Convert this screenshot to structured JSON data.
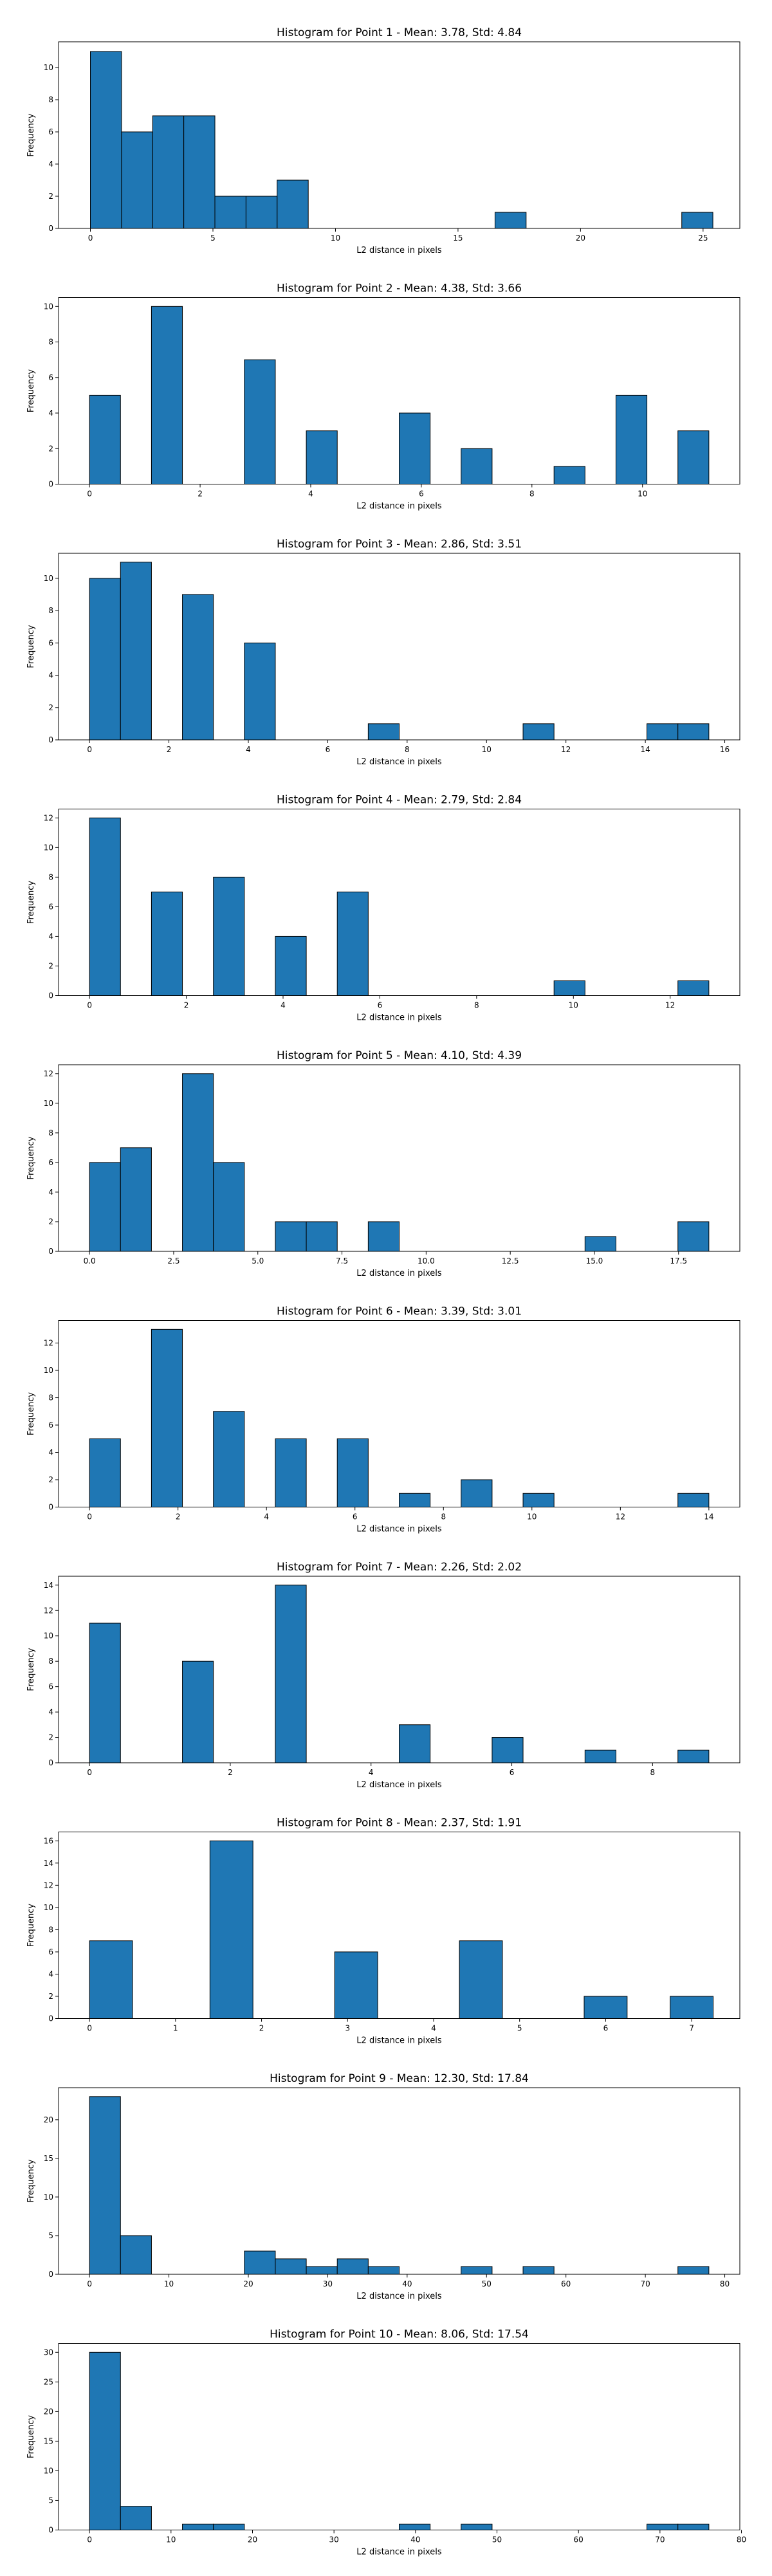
{
  "figure": {
    "bar_color": "#1f77b4",
    "edge_color": "#000000"
  },
  "chart_data": [
    {
      "type": "bar",
      "title": "Histogram for Point 1 - Mean: 3.78, Std: 4.84",
      "xlabel": "L2 distance in pixels",
      "ylabel": "Frequency",
      "xlim": [
        -1.3,
        26.5
      ],
      "ylim": [
        0,
        11.6
      ],
      "xticks": [
        0,
        5,
        10,
        15,
        20,
        25
      ],
      "xtick_labels": [
        "0",
        "5",
        "10",
        "15",
        "20",
        "25"
      ],
      "yticks": [
        0,
        2,
        4,
        6,
        8,
        10
      ],
      "ytick_labels": [
        "0",
        "2",
        "4",
        "6",
        "8",
        "10"
      ],
      "bins": [
        {
          "x0": 0,
          "x1": 1.27,
          "count": 11
        },
        {
          "x0": 1.27,
          "x1": 2.54,
          "count": 6
        },
        {
          "x0": 2.54,
          "x1": 3.81,
          "count": 7
        },
        {
          "x0": 3.81,
          "x1": 5.08,
          "count": 7
        },
        {
          "x0": 5.08,
          "x1": 6.35,
          "count": 2
        },
        {
          "x0": 6.35,
          "x1": 7.62,
          "count": 2
        },
        {
          "x0": 7.62,
          "x1": 8.89,
          "count": 3
        },
        {
          "x0": 16.51,
          "x1": 17.78,
          "count": 1
        },
        {
          "x0": 24.13,
          "x1": 25.4,
          "count": 1
        }
      ],
      "grid": false
    },
    {
      "type": "bar",
      "title": "Histogram for Point 2 - Mean: 4.38, Std: 3.66",
      "xlabel": "L2 distance in pixels",
      "ylabel": "Frequency",
      "xlim": [
        -0.56,
        11.76
      ],
      "ylim": [
        0,
        10.5
      ],
      "xticks": [
        0,
        2,
        4,
        6,
        8,
        10
      ],
      "xtick_labels": [
        "0",
        "2",
        "4",
        "6",
        "8",
        "10"
      ],
      "yticks": [
        0,
        2,
        4,
        6,
        8,
        10
      ],
      "ytick_labels": [
        "0",
        "2",
        "4",
        "6",
        "8",
        "10"
      ],
      "bins": [
        {
          "x0": 0,
          "x1": 0.56,
          "count": 5
        },
        {
          "x0": 1.12,
          "x1": 1.68,
          "count": 10
        },
        {
          "x0": 2.8,
          "x1": 3.36,
          "count": 7
        },
        {
          "x0": 3.92,
          "x1": 4.48,
          "count": 3
        },
        {
          "x0": 5.6,
          "x1": 6.16,
          "count": 4
        },
        {
          "x0": 6.72,
          "x1": 7.28,
          "count": 2
        },
        {
          "x0": 8.4,
          "x1": 8.96,
          "count": 1
        },
        {
          "x0": 9.52,
          "x1": 10.08,
          "count": 5
        },
        {
          "x0": 10.64,
          "x1": 11.2,
          "count": 3
        }
      ],
      "grid": false
    },
    {
      "type": "bar",
      "title": "Histogram for Point 3 - Mean: 2.86, Std: 3.51",
      "xlabel": "L2 distance in pixels",
      "ylabel": "Frequency",
      "xlim": [
        -0.78,
        16.38
      ],
      "ylim": [
        0,
        11.55
      ],
      "xticks": [
        0,
        2,
        4,
        6,
        8,
        10,
        12,
        14,
        16
      ],
      "xtick_labels": [
        "0",
        "2",
        "4",
        "6",
        "8",
        "10",
        "12",
        "14",
        "16"
      ],
      "yticks": [
        0,
        2,
        4,
        6,
        8,
        10
      ],
      "ytick_labels": [
        "0",
        "2",
        "4",
        "6",
        "8",
        "10"
      ],
      "bins": [
        {
          "x0": 0,
          "x1": 0.78,
          "count": 10
        },
        {
          "x0": 0.78,
          "x1": 1.56,
          "count": 11
        },
        {
          "x0": 2.34,
          "x1": 3.12,
          "count": 9
        },
        {
          "x0": 3.9,
          "x1": 4.68,
          "count": 6
        },
        {
          "x0": 7.02,
          "x1": 7.8,
          "count": 1
        },
        {
          "x0": 10.92,
          "x1": 11.7,
          "count": 1
        },
        {
          "x0": 14.04,
          "x1": 14.82,
          "count": 1
        },
        {
          "x0": 14.82,
          "x1": 15.6,
          "count": 1
        }
      ],
      "grid": false
    },
    {
      "type": "bar",
      "title": "Histogram for Point 4 - Mean: 2.79, Std: 2.84",
      "xlabel": "L2 distance in pixels",
      "ylabel": "Frequency",
      "xlim": [
        -0.64,
        13.44
      ],
      "ylim": [
        0,
        12.6
      ],
      "xticks": [
        0,
        2,
        4,
        6,
        8,
        10,
        12
      ],
      "xtick_labels": [
        "0",
        "2",
        "4",
        "6",
        "8",
        "10",
        "12"
      ],
      "yticks": [
        0,
        2,
        4,
        6,
        8,
        10,
        12
      ],
      "ytick_labels": [
        "0",
        "2",
        "4",
        "6",
        "8",
        "10",
        "12"
      ],
      "bins": [
        {
          "x0": 0,
          "x1": 0.64,
          "count": 12
        },
        {
          "x0": 1.28,
          "x1": 1.92,
          "count": 7
        },
        {
          "x0": 2.56,
          "x1": 3.2,
          "count": 8
        },
        {
          "x0": 3.84,
          "x1": 4.48,
          "count": 4
        },
        {
          "x0": 5.12,
          "x1": 5.76,
          "count": 7
        },
        {
          "x0": 9.6,
          "x1": 10.24,
          "count": 1
        },
        {
          "x0": 12.16,
          "x1": 12.8,
          "count": 1
        }
      ],
      "grid": false
    },
    {
      "type": "bar",
      "title": "Histogram for Point 5 - Mean: 4.10, Std: 4.39",
      "xlabel": "L2 distance in pixels",
      "ylabel": "Frequency",
      "xlim": [
        -0.92,
        19.32
      ],
      "ylim": [
        0,
        12.6
      ],
      "xticks": [
        0,
        2.5,
        5,
        7.5,
        10,
        12.5,
        15,
        17.5
      ],
      "xtick_labels": [
        "0.0",
        "2.5",
        "5.0",
        "7.5",
        "10.0",
        "12.5",
        "15.0",
        "17.5"
      ],
      "yticks": [
        0,
        2,
        4,
        6,
        8,
        10,
        12
      ],
      "ytick_labels": [
        "0",
        "2",
        "4",
        "6",
        "8",
        "10",
        "12"
      ],
      "bins": [
        {
          "x0": 0,
          "x1": 0.92,
          "count": 6
        },
        {
          "x0": 0.92,
          "x1": 1.84,
          "count": 7
        },
        {
          "x0": 2.76,
          "x1": 3.68,
          "count": 12
        },
        {
          "x0": 3.68,
          "x1": 4.6,
          "count": 6
        },
        {
          "x0": 5.52,
          "x1": 6.44,
          "count": 2
        },
        {
          "x0": 6.44,
          "x1": 7.36,
          "count": 2
        },
        {
          "x0": 8.28,
          "x1": 9.2,
          "count": 2
        },
        {
          "x0": 14.72,
          "x1": 15.64,
          "count": 1
        },
        {
          "x0": 17.48,
          "x1": 18.4,
          "count": 2
        }
      ],
      "grid": false
    },
    {
      "type": "bar",
      "title": "Histogram for Point 6 - Mean: 3.39, Std: 3.01",
      "xlabel": "L2 distance in pixels",
      "ylabel": "Frequency",
      "xlim": [
        -0.7,
        14.7
      ],
      "ylim": [
        0,
        13.65
      ],
      "xticks": [
        0,
        2,
        4,
        6,
        8,
        10,
        12,
        14
      ],
      "xtick_labels": [
        "0",
        "2",
        "4",
        "6",
        "8",
        "10",
        "12",
        "14"
      ],
      "yticks": [
        0,
        2,
        4,
        6,
        8,
        10,
        12
      ],
      "ytick_labels": [
        "0",
        "2",
        "4",
        "6",
        "8",
        "10",
        "12"
      ],
      "bins": [
        {
          "x0": 0,
          "x1": 0.7,
          "count": 5
        },
        {
          "x0": 1.4,
          "x1": 2.1,
          "count": 13
        },
        {
          "x0": 2.8,
          "x1": 3.5,
          "count": 7
        },
        {
          "x0": 4.2,
          "x1": 4.9,
          "count": 5
        },
        {
          "x0": 5.6,
          "x1": 6.3,
          "count": 5
        },
        {
          "x0": 7.0,
          "x1": 7.7,
          "count": 1
        },
        {
          "x0": 8.4,
          "x1": 9.1,
          "count": 2
        },
        {
          "x0": 9.8,
          "x1": 10.5,
          "count": 1
        },
        {
          "x0": 13.3,
          "x1": 14.0,
          "count": 1
        }
      ],
      "grid": false
    },
    {
      "type": "bar",
      "title": "Histogram for Point 7 - Mean: 2.26, Std: 2.02",
      "xlabel": "L2 distance in pixels",
      "ylabel": "Frequency",
      "xlim": [
        -0.44,
        9.24
      ],
      "ylim": [
        0,
        14.7
      ],
      "xticks": [
        0,
        2,
        4,
        6,
        8
      ],
      "xtick_labels": [
        "0",
        "2",
        "4",
        "6",
        "8"
      ],
      "yticks": [
        0,
        2,
        4,
        6,
        8,
        10,
        12,
        14
      ],
      "ytick_labels": [
        "0",
        "2",
        "4",
        "6",
        "8",
        "10",
        "12",
        "14"
      ],
      "bins": [
        {
          "x0": 0,
          "x1": 0.44,
          "count": 11
        },
        {
          "x0": 1.32,
          "x1": 1.76,
          "count": 8
        },
        {
          "x0": 2.64,
          "x1": 3.08,
          "count": 14
        },
        {
          "x0": 4.4,
          "x1": 4.84,
          "count": 3
        },
        {
          "x0": 5.72,
          "x1": 6.16,
          "count": 2
        },
        {
          "x0": 7.04,
          "x1": 7.48,
          "count": 1
        },
        {
          "x0": 8.36,
          "x1": 8.8,
          "count": 1
        }
      ],
      "grid": false
    },
    {
      "type": "bar",
      "title": "Histogram for Point 8 - Mean: 2.37, Std: 1.91",
      "xlabel": "L2 distance in pixels",
      "ylabel": "Frequency",
      "xlim": [
        -0.36,
        7.56
      ],
      "ylim": [
        0,
        16.8
      ],
      "xticks": [
        0,
        1,
        2,
        3,
        4,
        5,
        6,
        7
      ],
      "xtick_labels": [
        "0",
        "1",
        "2",
        "3",
        "4",
        "5",
        "6",
        "7"
      ],
      "yticks": [
        0,
        2,
        4,
        6,
        8,
        10,
        12,
        14,
        16
      ],
      "ytick_labels": [
        "0",
        "2",
        "4",
        "6",
        "8",
        "10",
        "12",
        "14",
        "16"
      ],
      "bins": [
        {
          "x0": 0,
          "x1": 0.5,
          "count": 7
        },
        {
          "x0": 1.4,
          "x1": 1.9,
          "count": 16
        },
        {
          "x0": 2.85,
          "x1": 3.35,
          "count": 6
        },
        {
          "x0": 4.3,
          "x1": 4.8,
          "count": 7
        },
        {
          "x0": 5.75,
          "x1": 6.25,
          "count": 2
        },
        {
          "x0": 6.75,
          "x1": 7.25,
          "count": 2
        }
      ],
      "grid": false
    },
    {
      "type": "bar",
      "title": "Histogram for Point 9 - Mean: 12.30, Std: 17.84",
      "xlabel": "L2 distance in pixels",
      "ylabel": "Frequency",
      "xlim": [
        -3.9,
        81.9
      ],
      "ylim": [
        0,
        24.15
      ],
      "xticks": [
        0,
        10,
        20,
        30,
        40,
        50,
        60,
        70,
        80
      ],
      "xtick_labels": [
        "0",
        "10",
        "20",
        "30",
        "40",
        "50",
        "60",
        "70",
        "80"
      ],
      "yticks": [
        0,
        5,
        10,
        15,
        20
      ],
      "ytick_labels": [
        "0",
        "5",
        "10",
        "15",
        "20"
      ],
      "bins": [
        {
          "x0": 0,
          "x1": 3.9,
          "count": 23
        },
        {
          "x0": 3.9,
          "x1": 7.8,
          "count": 5
        },
        {
          "x0": 19.5,
          "x1": 23.4,
          "count": 3
        },
        {
          "x0": 23.4,
          "x1": 27.3,
          "count": 2
        },
        {
          "x0": 27.3,
          "x1": 31.2,
          "count": 1
        },
        {
          "x0": 31.2,
          "x1": 35.1,
          "count": 2
        },
        {
          "x0": 35.1,
          "x1": 39.0,
          "count": 1
        },
        {
          "x0": 46.8,
          "x1": 50.7,
          "count": 1
        },
        {
          "x0": 54.6,
          "x1": 58.5,
          "count": 1
        },
        {
          "x0": 74.1,
          "x1": 78.0,
          "count": 1
        }
      ],
      "grid": false
    },
    {
      "type": "bar",
      "title": "Histogram for Point 10 - Mean: 8.06, Std: 17.54",
      "xlabel": "L2 distance in pixels",
      "ylabel": "Frequency",
      "xlim": [
        -3.8,
        79.8
      ],
      "ylim": [
        0,
        31.5
      ],
      "xticks": [
        0,
        10,
        20,
        30,
        40,
        50,
        60,
        70,
        80
      ],
      "xtick_labels": [
        "0",
        "10",
        "20",
        "30",
        "40",
        "50",
        "60",
        "70",
        "80"
      ],
      "yticks": [
        0,
        5,
        10,
        15,
        20,
        25,
        30
      ],
      "ytick_labels": [
        "0",
        "5",
        "10",
        "15",
        "20",
        "25",
        "30"
      ],
      "bins": [
        {
          "x0": 0,
          "x1": 3.8,
          "count": 30
        },
        {
          "x0": 3.8,
          "x1": 7.6,
          "count": 4
        },
        {
          "x0": 11.4,
          "x1": 15.2,
          "count": 1
        },
        {
          "x0": 15.2,
          "x1": 19.0,
          "count": 1
        },
        {
          "x0": 38.0,
          "x1": 41.8,
          "count": 1
        },
        {
          "x0": 45.6,
          "x1": 49.4,
          "count": 1
        },
        {
          "x0": 68.4,
          "x1": 72.2,
          "count": 1
        },
        {
          "x0": 72.2,
          "x1": 76.0,
          "count": 1
        }
      ],
      "grid": false
    }
  ]
}
